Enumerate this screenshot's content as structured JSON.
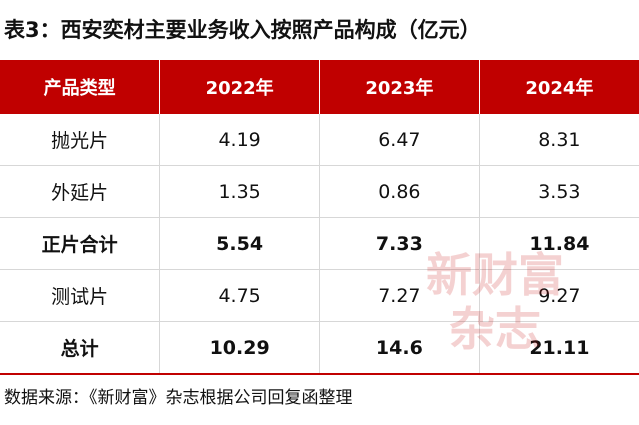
{
  "title": "表3：西安奕材主要业务收入按照产品构成（亿元）",
  "table": {
    "headers": [
      "产品类型",
      "2022年",
      "2023年",
      "2024年"
    ],
    "rows": [
      {
        "label": "抛光片",
        "v2022": "4.19",
        "v2023": "6.47",
        "v2024": "8.31"
      },
      {
        "label": "外延片",
        "v2022": "1.35",
        "v2023": "0.86",
        "v2024": "3.53"
      },
      {
        "label": "正片合计",
        "v2022": "5.54",
        "v2023": "7.33",
        "v2024": "11.84"
      },
      {
        "label": "测试片",
        "v2022": "4.75",
        "v2023": "7.27",
        "v2024": "9.27"
      },
      {
        "label": "总计",
        "v2022": "10.29",
        "v2023": "14.6",
        "v2024": "21.11"
      }
    ]
  },
  "watermark": {
    "line1": "新财富",
    "line2": "杂志"
  },
  "source": "数据来源：《新财富》杂志根据公司回复函整理",
  "colors": {
    "header_bg": "#c00000",
    "header_text": "#ffffff"
  }
}
